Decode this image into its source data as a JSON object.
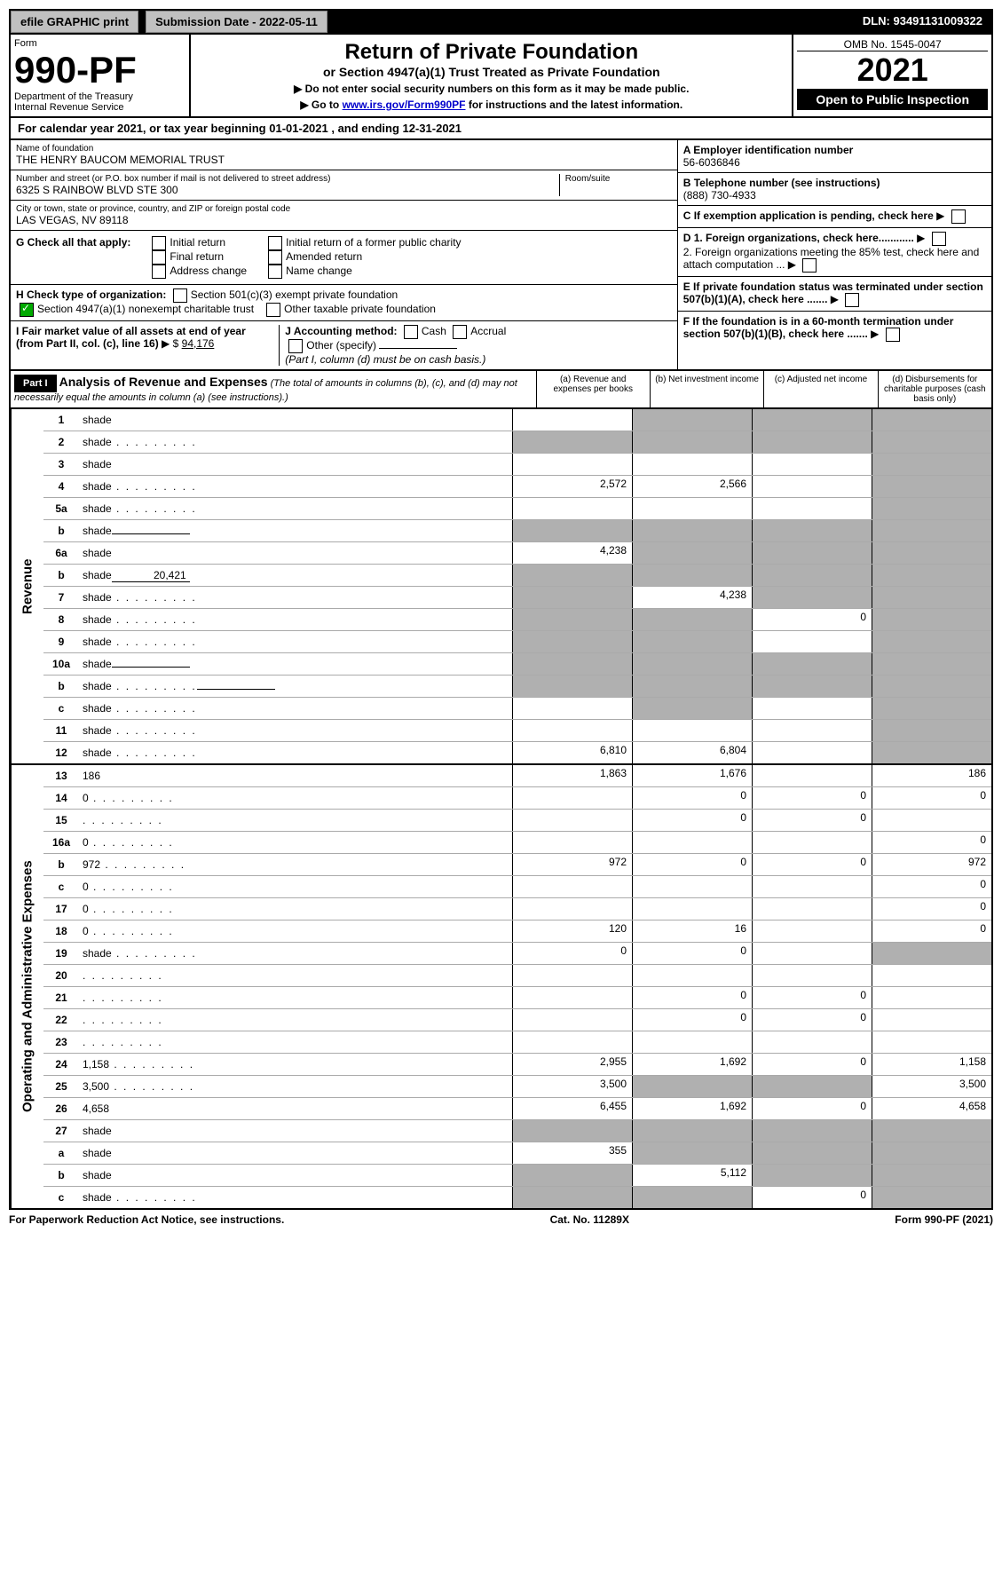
{
  "topbar": {
    "efile": "efile GRAPHIC print",
    "submission_label": "Submission Date - 2022-05-11",
    "dln": "DLN: 93491131009322"
  },
  "header": {
    "form_label": "Form",
    "form_no": "990-PF",
    "dept": "Department of the Treasury",
    "irs": "Internal Revenue Service",
    "title": "Return of Private Foundation",
    "subtitle": "or Section 4947(a)(1) Trust Treated as Private Foundation",
    "instr1": "▶ Do not enter social security numbers on this form as it may be made public.",
    "instr2_pre": "▶ Go to ",
    "instr2_link": "www.irs.gov/Form990PF",
    "instr2_post": " for instructions and the latest information.",
    "omb": "OMB No. 1545-0047",
    "year": "2021",
    "open": "Open to Public Inspection"
  },
  "cal": {
    "text_pre": "For calendar year 2021, or tax year beginning ",
    "begin": "01-01-2021",
    "text_mid": " , and ending ",
    "end": "12-31-2021"
  },
  "info": {
    "name_lbl": "Name of foundation",
    "name": "THE HENRY BAUCOM MEMORIAL TRUST",
    "addr_lbl": "Number and street (or P.O. box number if mail is not delivered to street address)",
    "addr": "6325 S RAINBOW BLVD STE 300",
    "room_lbl": "Room/suite",
    "city_lbl": "City or town, state or province, country, and ZIP or foreign postal code",
    "city": "LAS VEGAS, NV  89118",
    "a_lbl": "A Employer identification number",
    "a_val": "56-6036846",
    "b_lbl": "B Telephone number (see instructions)",
    "b_val": "(888) 730-4933",
    "c_lbl": "C If exemption application is pending, check here",
    "d1_lbl": "D 1. Foreign organizations, check here............",
    "d2_lbl": "2. Foreign organizations meeting the 85% test, check here and attach computation ...",
    "e_lbl": "E  If private foundation status was terminated under section 507(b)(1)(A), check here .......",
    "f_lbl": "F  If the foundation is in a 60-month termination under section 507(b)(1)(B), check here ......."
  },
  "g": {
    "label": "G Check all that apply:",
    "opts": [
      "Initial return",
      "Final return",
      "Address change",
      "Initial return of a former public charity",
      "Amended return",
      "Name change"
    ]
  },
  "h": {
    "label": "H Check type of organization:",
    "o1": "Section 501(c)(3) exempt private foundation",
    "o2": "Section 4947(a)(1) nonexempt charitable trust",
    "o3": "Other taxable private foundation"
  },
  "i": {
    "label": "I Fair market value of all assets at end of year (from Part II, col. (c), line 16)",
    "arrow": "▶ $",
    "val": "94,176"
  },
  "j": {
    "label": "J Accounting method:",
    "o1": "Cash",
    "o2": "Accrual",
    "o3": "Other (specify)",
    "note": "(Part I, column (d) must be on cash basis.)"
  },
  "part1": {
    "part": "Part I",
    "title": "Analysis of Revenue and Expenses",
    "title_note": " (The total of amounts in columns (b), (c), and (d) may not necessarily equal the amounts in column (a) (see instructions).)",
    "col_a": "(a)  Revenue and expenses per books",
    "col_b": "(b)  Net investment income",
    "col_c": "(c)  Adjusted net income",
    "col_d": "(d)  Disbursements for charitable purposes (cash basis only)"
  },
  "vlabels": {
    "revenue": "Revenue",
    "opex": "Operating and Administrative Expenses"
  },
  "rows": [
    {
      "n": "1",
      "d": "shade",
      "a": "",
      "b": "shade",
      "c": "shade"
    },
    {
      "n": "2",
      "d": "shade",
      "dots": true,
      "a": "shade",
      "b": "shade",
      "c": "shade"
    },
    {
      "n": "3",
      "d": "shade",
      "a": "",
      "b": "",
      "c": ""
    },
    {
      "n": "4",
      "d": "shade",
      "dots": true,
      "a": "2,572",
      "b": "2,566",
      "c": ""
    },
    {
      "n": "5a",
      "d": "shade",
      "dots": true,
      "a": "",
      "b": "",
      "c": ""
    },
    {
      "n": "b",
      "d": "shade",
      "mini": "",
      "a": "shade",
      "b": "shade",
      "c": "shade"
    },
    {
      "n": "6a",
      "d": "shade",
      "a": "4,238",
      "b": "shade",
      "c": "shade"
    },
    {
      "n": "b",
      "d": "shade",
      "mini": "20,421",
      "a": "shade",
      "b": "shade",
      "c": "shade"
    },
    {
      "n": "7",
      "d": "shade",
      "dots": true,
      "a": "shade",
      "b": "4,238",
      "c": "shade"
    },
    {
      "n": "8",
      "d": "shade",
      "dots": true,
      "a": "shade",
      "b": "shade",
      "c": "0"
    },
    {
      "n": "9",
      "d": "shade",
      "dots": true,
      "a": "shade",
      "b": "shade",
      "c": ""
    },
    {
      "n": "10a",
      "d": "shade",
      "mini": "",
      "a": "shade",
      "b": "shade",
      "c": "shade"
    },
    {
      "n": "b",
      "d": "shade",
      "dots": true,
      "mini": "",
      "a": "shade",
      "b": "shade",
      "c": "shade"
    },
    {
      "n": "c",
      "d": "shade",
      "dots": true,
      "a": "",
      "b": "shade",
      "c": ""
    },
    {
      "n": "11",
      "d": "shade",
      "dots": true,
      "a": "",
      "b": "",
      "c": ""
    },
    {
      "n": "12",
      "d": "shade",
      "dots": true,
      "a": "6,810",
      "b": "6,804",
      "c": ""
    }
  ],
  "rows2": [
    {
      "n": "13",
      "d": "186",
      "a": "1,863",
      "b": "1,676",
      "c": ""
    },
    {
      "n": "14",
      "d": "0",
      "dots": true,
      "a": "",
      "b": "0",
      "c": "0"
    },
    {
      "n": "15",
      "d": "",
      "dots": true,
      "a": "",
      "b": "0",
      "c": "0"
    },
    {
      "n": "16a",
      "d": "0",
      "dots": true,
      "a": "",
      "b": "",
      "c": ""
    },
    {
      "n": "b",
      "d": "972",
      "dots": true,
      "a": "972",
      "b": "0",
      "c": "0"
    },
    {
      "n": "c",
      "d": "0",
      "dots": true,
      "a": "",
      "b": "",
      "c": ""
    },
    {
      "n": "17",
      "d": "0",
      "dots": true,
      "a": "",
      "b": "",
      "c": ""
    },
    {
      "n": "18",
      "d": "0",
      "dots": true,
      "a": "120",
      "b": "16",
      "c": ""
    },
    {
      "n": "19",
      "d": "shade",
      "dots": true,
      "a": "0",
      "b": "0",
      "c": ""
    },
    {
      "n": "20",
      "d": "",
      "dots": true,
      "a": "",
      "b": "",
      "c": ""
    },
    {
      "n": "21",
      "d": "",
      "dots": true,
      "a": "",
      "b": "0",
      "c": "0"
    },
    {
      "n": "22",
      "d": "",
      "dots": true,
      "a": "",
      "b": "0",
      "c": "0"
    },
    {
      "n": "23",
      "d": "",
      "dots": true,
      "a": "",
      "b": "",
      "c": ""
    },
    {
      "n": "24",
      "d": "1,158",
      "dots": true,
      "a": "2,955",
      "b": "1,692",
      "c": "0"
    },
    {
      "n": "25",
      "d": "3,500",
      "dots": true,
      "a": "3,500",
      "b": "shade",
      "c": "shade"
    },
    {
      "n": "26",
      "d": "4,658",
      "a": "6,455",
      "b": "1,692",
      "c": "0"
    },
    {
      "n": "27",
      "d": "shade",
      "a": "shade",
      "b": "shade",
      "c": "shade"
    },
    {
      "n": "a",
      "d": "shade",
      "a": "355",
      "b": "shade",
      "c": "shade"
    },
    {
      "n": "b",
      "d": "shade",
      "a": "shade",
      "b": "5,112",
      "c": "shade"
    },
    {
      "n": "c",
      "d": "shade",
      "dots": true,
      "a": "shade",
      "b": "shade",
      "c": "0"
    }
  ],
  "footer": {
    "left": "For Paperwork Reduction Act Notice, see instructions.",
    "center": "Cat. No. 11289X",
    "right": "Form 990-PF (2021)"
  }
}
